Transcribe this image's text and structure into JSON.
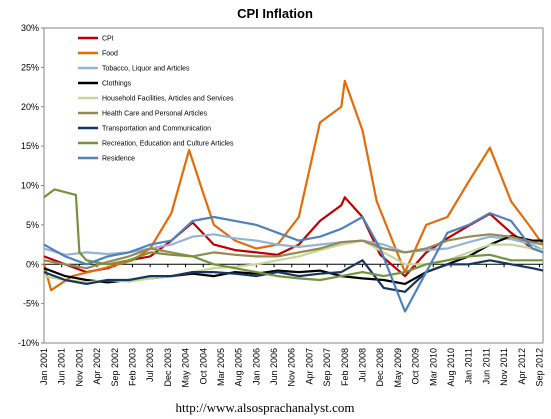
{
  "chart_data": {
    "type": "line",
    "title": "CPI Inflation",
    "xlabel": "",
    "ylabel": "",
    "ylim": [
      -10,
      30
    ],
    "yticks": [
      "-10%",
      "-5%",
      "0%",
      "5%",
      "10%",
      "15%",
      "20%",
      "25%",
      "30%"
    ],
    "x_tick_labels": [
      "Jan 2001",
      "Jun 2001",
      "Nov 2001",
      "Apr 2002",
      "Sep 2002",
      "Feb 2003",
      "Jul 2003",
      "Dec 2003",
      "May 2004",
      "Oct 2004",
      "Mar 2005",
      "Aug 2005",
      "Jan 2006",
      "Jun 2006",
      "Nov 2006",
      "Apr 2007",
      "Sep 2007",
      "Feb 2008",
      "Jul 2008",
      "Dec 2008",
      "May 2009",
      "Oct 2009",
      "Mar 2010",
      "Aug 2010",
      "Jan 2011",
      "Jun 2011",
      "Nov 2011",
      "Apr 2012",
      "Sep 2012"
    ],
    "x_unit": "month",
    "x_start": "Jan 2001",
    "x_end": "Oct 2012",
    "grid": false,
    "legend_position": "top-left",
    "source_text": "http://www.alsosprachanalyst.com",
    "series": [
      {
        "name": "CPI",
        "color": "#c00000",
        "points": [
          [
            "Jan 2001",
            1
          ],
          [
            "Jul 2001",
            0
          ],
          [
            "Jan 2002",
            -1
          ],
          [
            "Jul 2002",
            -0.5
          ],
          [
            "Jan 2003",
            0.5
          ],
          [
            "Jul 2003",
            1
          ],
          [
            "Jan 2004",
            3
          ],
          [
            "Jul 2004",
            5.3
          ],
          [
            "Jan 2005",
            2.5
          ],
          [
            "Jul 2005",
            1.8
          ],
          [
            "Jan 2006",
            1.5
          ],
          [
            "Jul 2006",
            1.2
          ],
          [
            "Jan 2007",
            2.5
          ],
          [
            "Jul 2007",
            5.5
          ],
          [
            "Jan 2008",
            7.5
          ],
          [
            "Feb 2008",
            8.5
          ],
          [
            "Jul 2008",
            6
          ],
          [
            "Dec 2008",
            1.2
          ],
          [
            "Jul 2009",
            -1.5
          ],
          [
            "Jan 2010",
            1.5
          ],
          [
            "Jul 2010",
            3.3
          ],
          [
            "Jan 2011",
            4.9
          ],
          [
            "Jul 2011",
            6.4
          ],
          [
            "Jan 2012",
            4
          ],
          [
            "Jul 2012",
            2
          ],
          [
            "Oct 2012",
            1.8
          ]
        ]
      },
      {
        "name": "Food",
        "color": "#e36c09",
        "points": [
          [
            "Jan 2001",
            0
          ],
          [
            "Mar 2001",
            -3.3
          ],
          [
            "Sep 2001",
            -1.5
          ],
          [
            "Jun 2002",
            -0.5
          ],
          [
            "Feb 2003",
            0.5
          ],
          [
            "Jul 2003",
            2
          ],
          [
            "Jan 2004",
            6.5
          ],
          [
            "Jun 2004",
            14.5
          ],
          [
            "Oct 2004",
            9
          ],
          [
            "Jan 2005",
            5
          ],
          [
            "Jul 2005",
            3
          ],
          [
            "Jan 2006",
            2
          ],
          [
            "Jul 2006",
            2.5
          ],
          [
            "Jan 2007",
            6
          ],
          [
            "Jul 2007",
            18
          ],
          [
            "Jan 2008",
            20
          ],
          [
            "Feb 2008",
            23.3
          ],
          [
            "Jul 2008",
            17
          ],
          [
            "Nov 2008",
            8
          ],
          [
            "Jul 2009",
            -1
          ],
          [
            "Jan 2010",
            5
          ],
          [
            "Jul 2010",
            6
          ],
          [
            "Jan 2011",
            10.5
          ],
          [
            "Jul 2011",
            14.8
          ],
          [
            "Jan 2012",
            8
          ],
          [
            "Jun 2012",
            5
          ],
          [
            "Oct 2012",
            2.5
          ]
        ]
      },
      {
        "name": "Tobacco, Liquor and Articles",
        "color": "#95b3d7",
        "points": [
          [
            "Jan 2001",
            2
          ],
          [
            "Jul 2001",
            1.2
          ],
          [
            "Jan 2002",
            1.5
          ],
          [
            "Jul 2002",
            1.3
          ],
          [
            "Jan 2003",
            1.5
          ],
          [
            "Jul 2003",
            2
          ],
          [
            "Jan 2004",
            2.5
          ],
          [
            "Jul 2004",
            3.5
          ],
          [
            "Jan 2005",
            3.8
          ],
          [
            "Jul 2005",
            3.3
          ],
          [
            "Jan 2006",
            3
          ],
          [
            "Jul 2006",
            2.5
          ],
          [
            "Jan 2007",
            2.2
          ],
          [
            "Jul 2007",
            2.5
          ],
          [
            "Jan 2008",
            2.8
          ],
          [
            "Jul 2008",
            3
          ],
          [
            "Jan 2009",
            2.5
          ],
          [
            "Jul 2009",
            1.5
          ],
          [
            "Jan 2010",
            1.8
          ],
          [
            "Jul 2010",
            2
          ],
          [
            "Jan 2011",
            2.8
          ],
          [
            "Jul 2011",
            3.5
          ],
          [
            "Jan 2012",
            3.2
          ],
          [
            "Jul 2012",
            2.5
          ],
          [
            "Oct 2012",
            1.8
          ]
        ]
      },
      {
        "name": "Clothings",
        "color": "#000000",
        "points": [
          [
            "Jan 2001",
            -0.5
          ],
          [
            "Jul 2001",
            -1.5
          ],
          [
            "Jan 2002",
            -2
          ],
          [
            "Jul 2002",
            -2.3
          ],
          [
            "Jan 2003",
            -2
          ],
          [
            "Jul 2003",
            -1.8
          ],
          [
            "Jan 2004",
            -1.5
          ],
          [
            "Jul 2004",
            -1.2
          ],
          [
            "Jan 2005",
            -1.5
          ],
          [
            "Jul 2005",
            -1
          ],
          [
            "Jan 2006",
            -1.2
          ],
          [
            "Jul 2006",
            -0.8
          ],
          [
            "Jan 2007",
            -1
          ],
          [
            "Jul 2007",
            -0.8
          ],
          [
            "Jan 2008",
            -1.5
          ],
          [
            "Jul 2008",
            -1.8
          ],
          [
            "Jan 2009",
            -2
          ],
          [
            "Jul 2009",
            -2.5
          ],
          [
            "Jan 2010",
            -1
          ],
          [
            "Jul 2010",
            0
          ],
          [
            "Jan 2011",
            1
          ],
          [
            "Jul 2011",
            2.5
          ],
          [
            "Jan 2012",
            3.6
          ],
          [
            "Jul 2012",
            3
          ],
          [
            "Oct 2012",
            3
          ]
        ]
      },
      {
        "name": "Household Facilities, Articles and Services",
        "color": "#c4d79b",
        "points": [
          [
            "Jan 2001",
            -1.5
          ],
          [
            "Jul 2001",
            -2
          ],
          [
            "Jan 2002",
            -2.3
          ],
          [
            "Jul 2002",
            -2
          ],
          [
            "Jan 2003",
            -2.2
          ],
          [
            "Jul 2003",
            -1.8
          ],
          [
            "Jan 2004",
            -1.5
          ],
          [
            "Jul 2004",
            -1
          ],
          [
            "Jan 2005",
            -0.5
          ],
          [
            "Jul 2005",
            -0.3
          ],
          [
            "Jan 2006",
            0
          ],
          [
            "Jul 2006",
            0.5
          ],
          [
            "Jan 2007",
            1
          ],
          [
            "Jul 2007",
            1.8
          ],
          [
            "Jan 2008",
            2.5
          ],
          [
            "Jul 2008",
            3
          ],
          [
            "Jan 2009",
            1.5
          ],
          [
            "Jul 2009",
            0
          ],
          [
            "Jan 2010",
            0
          ],
          [
            "Jul 2010",
            0.5
          ],
          [
            "Jan 2011",
            1.5
          ],
          [
            "Jul 2011",
            2.5
          ],
          [
            "Jan 2012",
            2.5
          ],
          [
            "Jul 2012",
            2
          ],
          [
            "Oct 2012",
            1.8
          ]
        ]
      },
      {
        "name": "Health Care and Personal Articles",
        "color": "#948a54",
        "points": [
          [
            "Jan 2001",
            0.5
          ],
          [
            "Jul 2001",
            0
          ],
          [
            "Jan 2002",
            -0.5
          ],
          [
            "Jul 2002",
            0.3
          ],
          [
            "Jan 2003",
            1
          ],
          [
            "Jul 2003",
            2
          ],
          [
            "Jan 2004",
            1.5
          ],
          [
            "Jul 2004",
            1
          ],
          [
            "Jan 2005",
            1.5
          ],
          [
            "Jul 2005",
            1.2
          ],
          [
            "Jan 2006",
            1
          ],
          [
            "Jul 2006",
            1
          ],
          [
            "Jan 2007",
            1.5
          ],
          [
            "Jul 2007",
            2
          ],
          [
            "Jan 2008",
            2.8
          ],
          [
            "Jul 2008",
            3
          ],
          [
            "Jan 2009",
            2
          ],
          [
            "Jul 2009",
            1.5
          ],
          [
            "Jan 2010",
            2
          ],
          [
            "Jul 2010",
            3
          ],
          [
            "Jan 2011",
            3.5
          ],
          [
            "Jul 2011",
            3.8
          ],
          [
            "Jan 2012",
            3.5
          ],
          [
            "Jul 2012",
            2.8
          ],
          [
            "Oct 2012",
            2.5
          ]
        ]
      },
      {
        "name": "Transportation and Communication",
        "color": "#17365d",
        "points": [
          [
            "Jan 2001",
            -1
          ],
          [
            "Jul 2001",
            -2
          ],
          [
            "Jan 2002",
            -2.5
          ],
          [
            "Jul 2002",
            -2
          ],
          [
            "Jan 2003",
            -2
          ],
          [
            "Jul 2003",
            -1.5
          ],
          [
            "Jan 2004",
            -1.5
          ],
          [
            "Jul 2004",
            -1
          ],
          [
            "Jan 2005",
            -1
          ],
          [
            "Jul 2005",
            -1.2
          ],
          [
            "Jan 2006",
            -1.5
          ],
          [
            "Jul 2006",
            -1
          ],
          [
            "Jan 2007",
            -1.5
          ],
          [
            "Jul 2007",
            -1.2
          ],
          [
            "Jan 2008",
            -1
          ],
          [
            "Jul 2008",
            0.5
          ],
          [
            "Jan 2009",
            -3
          ],
          [
            "Jul 2009",
            -3.5
          ],
          [
            "Jan 2010",
            -1
          ],
          [
            "Jul 2010",
            0
          ],
          [
            "Jan 2011",
            0
          ],
          [
            "Jul 2011",
            0.5
          ],
          [
            "Jan 2012",
            0
          ],
          [
            "Jul 2012",
            -0.5
          ],
          [
            "Oct 2012",
            -0.8
          ]
        ]
      },
      {
        "name": "Recreation, Education and Culture Articles",
        "color": "#76923c",
        "points": [
          [
            "Jan 2001",
            8.5
          ],
          [
            "Apr 2001",
            9.5
          ],
          [
            "Oct 2001",
            8.8
          ],
          [
            "Nov 2001",
            1.5
          ],
          [
            "Jan 2002",
            0.5
          ],
          [
            "Jul 2002",
            0
          ],
          [
            "Jan 2003",
            0.5
          ],
          [
            "Jul 2003",
            1.5
          ],
          [
            "Jan 2004",
            1.2
          ],
          [
            "Jul 2004",
            1
          ],
          [
            "Jan 2005",
            0
          ],
          [
            "Jul 2005",
            -0.5
          ],
          [
            "Jan 2006",
            -1
          ],
          [
            "Jul 2006",
            -1.5
          ],
          [
            "Jan 2007",
            -1.8
          ],
          [
            "Jul 2007",
            -2
          ],
          [
            "Jan 2008",
            -1.5
          ],
          [
            "Jul 2008",
            -1
          ],
          [
            "Jan 2009",
            -1.5
          ],
          [
            "Jul 2009",
            -1
          ],
          [
            "Jan 2010",
            0
          ],
          [
            "Jul 2010",
            0.5
          ],
          [
            "Jan 2011",
            1
          ],
          [
            "Jul 2011",
            1.2
          ],
          [
            "Jan 2012",
            0.5
          ],
          [
            "Jul 2012",
            0.5
          ],
          [
            "Oct 2012",
            0.5
          ]
        ]
      },
      {
        "name": "Residence",
        "color": "#4f81bd",
        "points": [
          [
            "Jan 2001",
            2.5
          ],
          [
            "Jul 2001",
            1
          ],
          [
            "Jan 2002",
            0
          ],
          [
            "Jul 2002",
            1
          ],
          [
            "Jan 2003",
            1.5
          ],
          [
            "Jul 2003",
            2.5
          ],
          [
            "Jan 2004",
            3
          ],
          [
            "Jul 2004",
            5.5
          ],
          [
            "Jan 2005",
            6
          ],
          [
            "Jul 2005",
            5.5
          ],
          [
            "Jan 2006",
            5
          ],
          [
            "Jul 2006",
            4
          ],
          [
            "Jan 2007",
            3
          ],
          [
            "Jul 2007",
            3.5
          ],
          [
            "Jan 2008",
            4.5
          ],
          [
            "Jul 2008",
            6
          ],
          [
            "Dec 2008",
            2
          ],
          [
            "Jul 2009",
            -6
          ],
          [
            "Jan 2010",
            -1
          ],
          [
            "Jul 2010",
            4
          ],
          [
            "Jan 2011",
            5
          ],
          [
            "Jul 2011",
            6.5
          ],
          [
            "Jan 2012",
            5.5
          ],
          [
            "Jul 2012",
            2
          ],
          [
            "Oct 2012",
            1.5
          ]
        ]
      }
    ]
  }
}
